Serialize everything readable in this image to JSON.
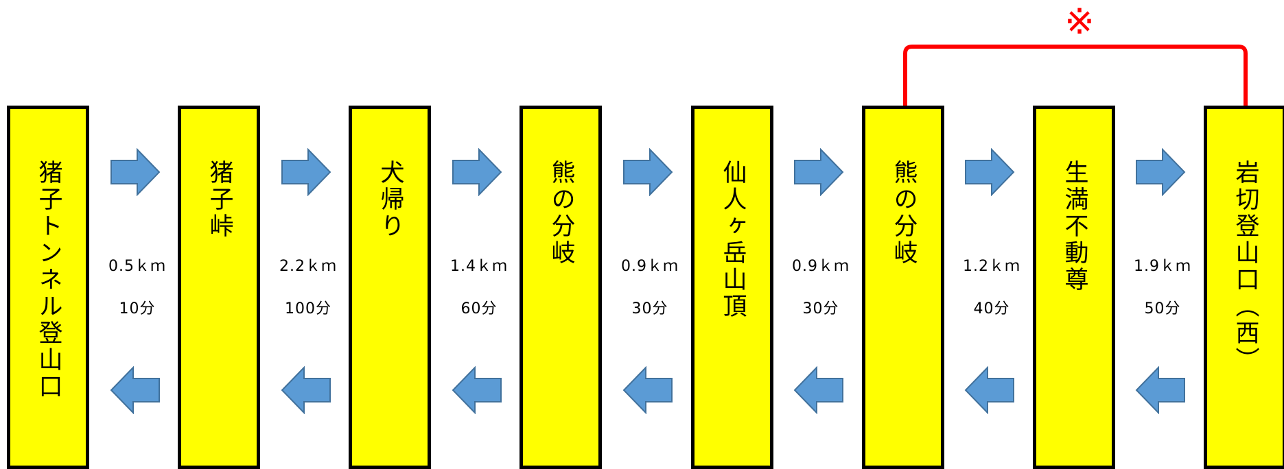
{
  "stops": [
    {
      "label": "猪子トンネル登山口"
    },
    {
      "label": "猪子峠"
    },
    {
      "label": "犬帰り"
    },
    {
      "label": "熊の分岐"
    },
    {
      "label": "仙人ヶ岳山頂"
    },
    {
      "label": "熊の分岐"
    },
    {
      "label": "生満不動尊"
    },
    {
      "label": "岩切登山口（西）"
    }
  ],
  "segments": [
    {
      "distance": "0.5ｋｍ",
      "time": "10分"
    },
    {
      "distance": "2.2ｋｍ",
      "time": "100分"
    },
    {
      "distance": "1.4ｋｍ",
      "time": "60分"
    },
    {
      "distance": "0.9ｋｍ",
      "time": "30分"
    },
    {
      "distance": "0.9ｋｍ",
      "time": "30分"
    },
    {
      "distance": "1.2ｋｍ",
      "time": "40分"
    },
    {
      "distance": "1.9ｋｍ",
      "time": "50分"
    }
  ],
  "note_mark": "※",
  "colors": {
    "stop_fill": "#ffff00",
    "stop_border": "#000000",
    "arrow_fill": "#5b9bd5",
    "arrow_stroke": "#41719c",
    "bracket": "#ff0000"
  },
  "icons": {
    "forward": "arrow-right-icon",
    "back": "arrow-left-icon"
  }
}
